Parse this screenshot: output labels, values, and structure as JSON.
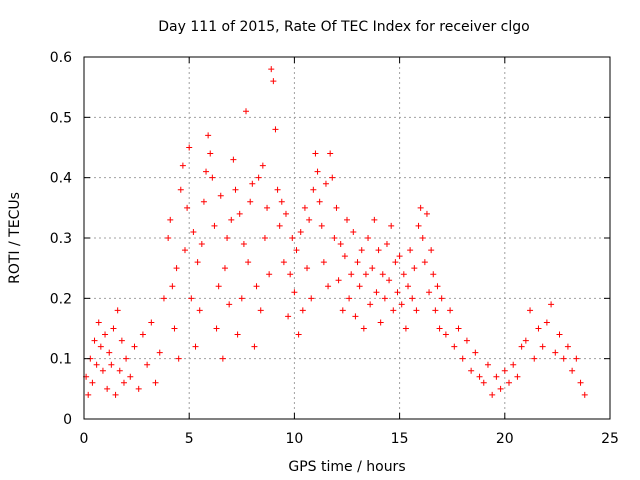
{
  "chart_data": {
    "type": "scatter",
    "title": "Day 111 of 2015, Rate Of TEC Index for receiver clgo",
    "xlabel": "GPS time / hours",
    "ylabel": "ROTI / TECUs",
    "xlim": [
      0,
      25
    ],
    "ylim": [
      0,
      0.6
    ],
    "xticks": [
      0,
      5,
      10,
      15,
      20,
      25
    ],
    "xtick_labels": [
      "0",
      "5",
      "10",
      "15",
      "20",
      "25"
    ],
    "yticks": [
      0,
      0.1,
      0.2,
      0.3,
      0.4,
      0.5,
      0.6
    ],
    "ytick_labels": [
      "0",
      "0.1",
      "0.2",
      "0.3",
      "0.4",
      "0.5",
      "0.6"
    ],
    "grid": true,
    "marker": "plus",
    "color": "#ff0000",
    "series": [
      {
        "points": [
          [
            0.1,
            0.07
          ],
          [
            0.2,
            0.04
          ],
          [
            0.3,
            0.1
          ],
          [
            0.4,
            0.06
          ],
          [
            0.5,
            0.13
          ],
          [
            0.6,
            0.09
          ],
          [
            0.7,
            0.16
          ],
          [
            0.8,
            0.12
          ],
          [
            0.9,
            0.08
          ],
          [
            1.0,
            0.14
          ],
          [
            1.1,
            0.05
          ],
          [
            1.2,
            0.11
          ],
          [
            1.3,
            0.09
          ],
          [
            1.4,
            0.15
          ],
          [
            1.5,
            0.04
          ],
          [
            1.6,
            0.18
          ],
          [
            1.7,
            0.08
          ],
          [
            1.8,
            0.13
          ],
          [
            1.9,
            0.06
          ],
          [
            2.0,
            0.1
          ],
          [
            2.2,
            0.07
          ],
          [
            2.4,
            0.12
          ],
          [
            2.6,
            0.05
          ],
          [
            2.8,
            0.14
          ],
          [
            3.0,
            0.09
          ],
          [
            3.2,
            0.16
          ],
          [
            3.4,
            0.06
          ],
          [
            3.6,
            0.11
          ],
          [
            3.8,
            0.2
          ],
          [
            4.0,
            0.3
          ],
          [
            4.1,
            0.33
          ],
          [
            4.2,
            0.22
          ],
          [
            4.3,
            0.15
          ],
          [
            4.4,
            0.25
          ],
          [
            4.5,
            0.1
          ],
          [
            4.6,
            0.38
          ],
          [
            4.7,
            0.42
          ],
          [
            4.8,
            0.28
          ],
          [
            4.9,
            0.35
          ],
          [
            5.0,
            0.45
          ],
          [
            5.1,
            0.2
          ],
          [
            5.2,
            0.31
          ],
          [
            5.3,
            0.12
          ],
          [
            5.4,
            0.26
          ],
          [
            5.5,
            0.18
          ],
          [
            5.6,
            0.29
          ],
          [
            5.7,
            0.36
          ],
          [
            5.8,
            0.41
          ],
          [
            5.9,
            0.47
          ],
          [
            6.0,
            0.44
          ],
          [
            6.1,
            0.4
          ],
          [
            6.2,
            0.32
          ],
          [
            6.3,
            0.15
          ],
          [
            6.4,
            0.22
          ],
          [
            6.5,
            0.37
          ],
          [
            6.6,
            0.1
          ],
          [
            6.7,
            0.25
          ],
          [
            6.8,
            0.3
          ],
          [
            6.9,
            0.19
          ],
          [
            7.0,
            0.33
          ],
          [
            7.1,
            0.43
          ],
          [
            7.2,
            0.38
          ],
          [
            7.3,
            0.14
          ],
          [
            7.4,
            0.34
          ],
          [
            7.5,
            0.2
          ],
          [
            7.6,
            0.29
          ],
          [
            7.7,
            0.51
          ],
          [
            7.8,
            0.26
          ],
          [
            7.9,
            0.36
          ],
          [
            8.0,
            0.39
          ],
          [
            8.1,
            0.12
          ],
          [
            8.2,
            0.22
          ],
          [
            8.3,
            0.4
          ],
          [
            8.4,
            0.18
          ],
          [
            8.5,
            0.42
          ],
          [
            8.6,
            0.3
          ],
          [
            8.7,
            0.35
          ],
          [
            8.8,
            0.24
          ],
          [
            8.9,
            0.58
          ],
          [
            9.0,
            0.56
          ],
          [
            9.1,
            0.48
          ],
          [
            9.2,
            0.38
          ],
          [
            9.3,
            0.32
          ],
          [
            9.4,
            0.36
          ],
          [
            9.5,
            0.26
          ],
          [
            9.6,
            0.34
          ],
          [
            9.7,
            0.17
          ],
          [
            9.8,
            0.24
          ],
          [
            9.9,
            0.3
          ],
          [
            10.0,
            0.21
          ],
          [
            10.1,
            0.28
          ],
          [
            10.2,
            0.14
          ],
          [
            10.3,
            0.31
          ],
          [
            10.4,
            0.18
          ],
          [
            10.5,
            0.35
          ],
          [
            10.6,
            0.25
          ],
          [
            10.7,
            0.33
          ],
          [
            10.8,
            0.2
          ],
          [
            10.9,
            0.38
          ],
          [
            11.0,
            0.44
          ],
          [
            11.1,
            0.41
          ],
          [
            11.2,
            0.36
          ],
          [
            11.3,
            0.32
          ],
          [
            11.4,
            0.26
          ],
          [
            11.5,
            0.39
          ],
          [
            11.6,
            0.22
          ],
          [
            11.7,
            0.44
          ],
          [
            11.8,
            0.4
          ],
          [
            11.9,
            0.3
          ],
          [
            12.0,
            0.35
          ],
          [
            12.1,
            0.23
          ],
          [
            12.2,
            0.29
          ],
          [
            12.3,
            0.18
          ],
          [
            12.4,
            0.27
          ],
          [
            12.5,
            0.33
          ],
          [
            12.6,
            0.2
          ],
          [
            12.7,
            0.24
          ],
          [
            12.8,
            0.31
          ],
          [
            12.9,
            0.17
          ],
          [
            13.0,
            0.26
          ],
          [
            13.1,
            0.22
          ],
          [
            13.2,
            0.28
          ],
          [
            13.3,
            0.15
          ],
          [
            13.4,
            0.24
          ],
          [
            13.5,
            0.3
          ],
          [
            13.6,
            0.19
          ],
          [
            13.7,
            0.25
          ],
          [
            13.8,
            0.33
          ],
          [
            13.9,
            0.21
          ],
          [
            14.0,
            0.28
          ],
          [
            14.1,
            0.16
          ],
          [
            14.2,
            0.24
          ],
          [
            14.3,
            0.2
          ],
          [
            14.4,
            0.29
          ],
          [
            14.5,
            0.23
          ],
          [
            14.6,
            0.32
          ],
          [
            14.7,
            0.18
          ],
          [
            14.8,
            0.26
          ],
          [
            14.9,
            0.21
          ],
          [
            15.0,
            0.27
          ],
          [
            15.1,
            0.19
          ],
          [
            15.2,
            0.24
          ],
          [
            15.3,
            0.15
          ],
          [
            15.4,
            0.22
          ],
          [
            15.5,
            0.28
          ],
          [
            15.6,
            0.2
          ],
          [
            15.7,
            0.25
          ],
          [
            15.8,
            0.18
          ],
          [
            15.9,
            0.32
          ],
          [
            16.0,
            0.35
          ],
          [
            16.1,
            0.3
          ],
          [
            16.2,
            0.26
          ],
          [
            16.3,
            0.34
          ],
          [
            16.4,
            0.21
          ],
          [
            16.5,
            0.28
          ],
          [
            16.6,
            0.24
          ],
          [
            16.7,
            0.18
          ],
          [
            16.8,
            0.22
          ],
          [
            16.9,
            0.15
          ],
          [
            17.0,
            0.2
          ],
          [
            17.2,
            0.14
          ],
          [
            17.4,
            0.18
          ],
          [
            17.6,
            0.12
          ],
          [
            17.8,
            0.15
          ],
          [
            18.0,
            0.1
          ],
          [
            18.2,
            0.13
          ],
          [
            18.4,
            0.08
          ],
          [
            18.6,
            0.11
          ],
          [
            18.8,
            0.07
          ],
          [
            19.0,
            0.06
          ],
          [
            19.2,
            0.09
          ],
          [
            19.4,
            0.04
          ],
          [
            19.6,
            0.07
          ],
          [
            19.8,
            0.05
          ],
          [
            20.0,
            0.08
          ],
          [
            20.2,
            0.06
          ],
          [
            20.4,
            0.09
          ],
          [
            20.6,
            0.07
          ],
          [
            20.8,
            0.12
          ],
          [
            21.0,
            0.13
          ],
          [
            21.2,
            0.18
          ],
          [
            21.4,
            0.1
          ],
          [
            21.6,
            0.15
          ],
          [
            21.8,
            0.12
          ],
          [
            22.0,
            0.16
          ],
          [
            22.2,
            0.19
          ],
          [
            22.4,
            0.11
          ],
          [
            22.6,
            0.14
          ],
          [
            22.8,
            0.1
          ],
          [
            23.0,
            0.12
          ],
          [
            23.2,
            0.08
          ],
          [
            23.4,
            0.1
          ],
          [
            23.6,
            0.06
          ],
          [
            23.8,
            0.04
          ]
        ]
      }
    ]
  }
}
